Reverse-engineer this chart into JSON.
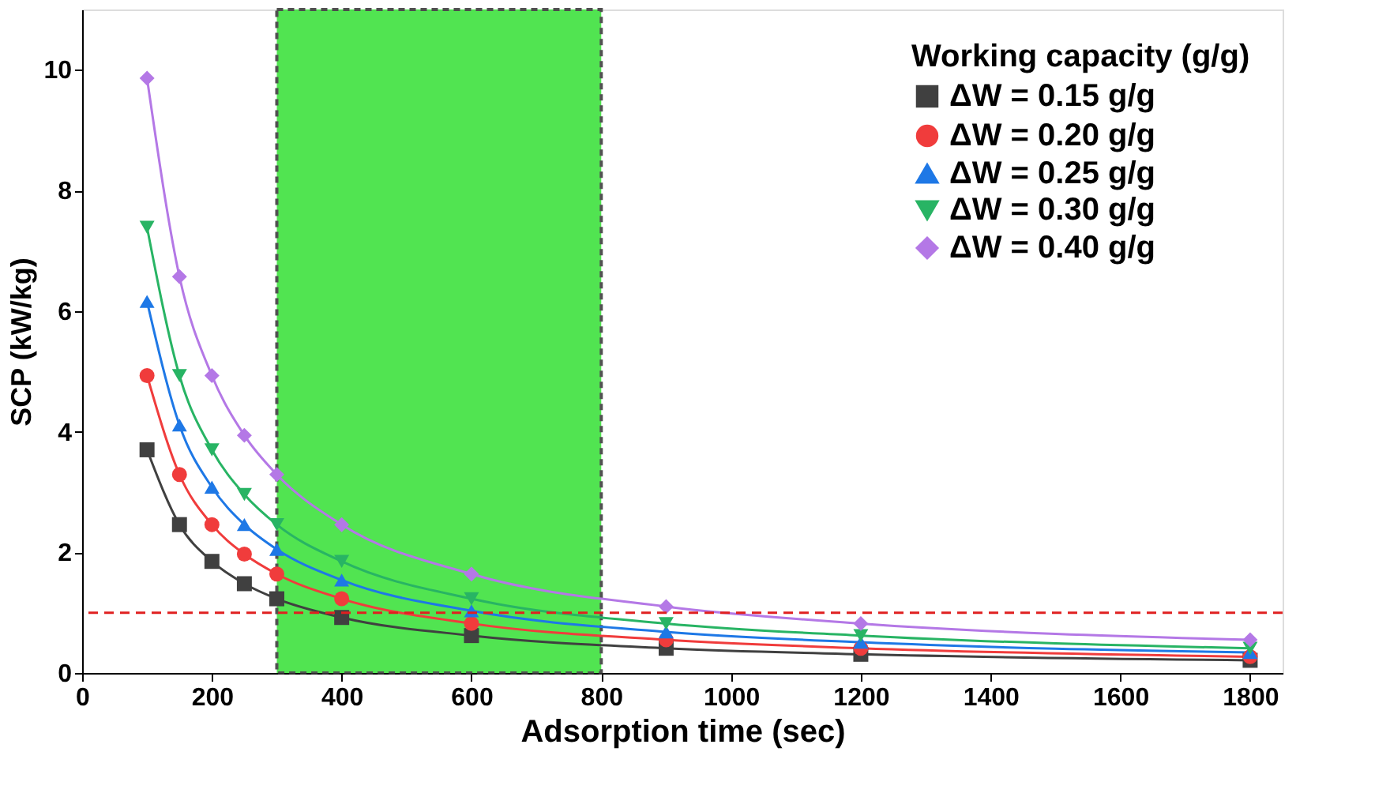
{
  "chart_data": {
    "type": "line",
    "xlabel": "Adsorption time (sec)",
    "ylabel": "SCP (kW/kg)",
    "legend_title": "Working capacity (g/g)",
    "legend": "top right",
    "x": [
      100,
      150,
      200,
      250,
      300,
      400,
      600,
      900,
      1200,
      1800
    ],
    "series": [
      {
        "name": "ΔW = 0.15 g/g",
        "color": "#404040",
        "marker": "square",
        "values": [
          3.7,
          2.46,
          1.85,
          1.48,
          1.23,
          0.92,
          0.62,
          0.41,
          0.31,
          0.21
        ]
      },
      {
        "name": "ΔW = 0.20 g/g",
        "color": "#f03c3c",
        "marker": "circle",
        "values": [
          4.93,
          3.29,
          2.46,
          1.97,
          1.64,
          1.23,
          0.82,
          0.55,
          0.41,
          0.27
        ]
      },
      {
        "name": "ΔW = 0.25 g/g",
        "color": "#1e78e6",
        "marker": "triangle",
        "values": [
          6.16,
          4.11,
          3.08,
          2.46,
          2.05,
          1.54,
          1.03,
          0.68,
          0.51,
          0.34
        ]
      },
      {
        "name": "ΔW = 0.30 g/g",
        "color": "#28b464",
        "marker": "triangle-down",
        "values": [
          7.39,
          4.93,
          3.7,
          2.96,
          2.46,
          1.85,
          1.23,
          0.82,
          0.62,
          0.41
        ]
      },
      {
        "name": "ΔW = 0.40 g/g",
        "color": "#b478e6",
        "marker": "diamond",
        "values": [
          9.86,
          6.57,
          4.93,
          3.94,
          3.29,
          2.46,
          1.64,
          1.1,
          0.82,
          0.55
        ]
      }
    ],
    "xlim": [
      0,
      1850
    ],
    "xticks": [
      0,
      200,
      400,
      600,
      800,
      1000,
      1200,
      1400,
      1600,
      1800
    ],
    "ylim": [
      0,
      11
    ],
    "yticks": [
      0,
      2,
      4,
      6,
      8,
      10
    ],
    "grid": false,
    "ref_lines": [
      {
        "axis": "y",
        "value": 1,
        "color": "#e02020",
        "line_style": "dashed"
      }
    ],
    "bands": [
      {
        "axis": "x",
        "from": 300,
        "to": 800,
        "color": "#33e033"
      }
    ]
  }
}
